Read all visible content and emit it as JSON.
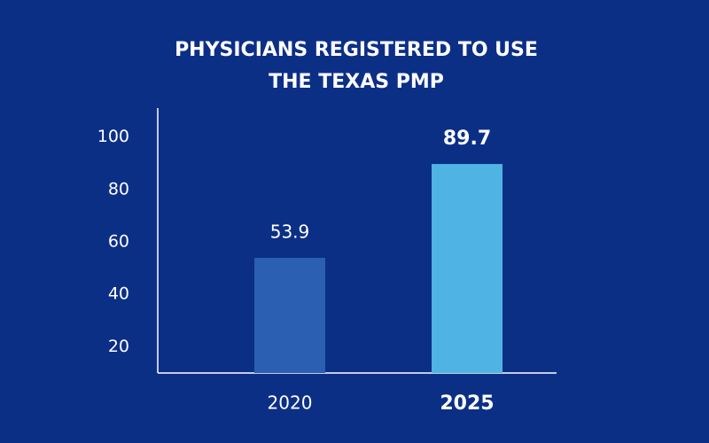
{
  "chart_data": {
    "type": "bar",
    "title": [
      "PHYSICIANS REGISTERED TO USE",
      "THE TEXAS PMP"
    ],
    "categories": [
      "2020",
      "2025"
    ],
    "values": [
      53.9,
      89.7
    ],
    "colors": [
      "#2a5fb2",
      "#4fb4e4"
    ],
    "ylim": [
      10,
      110
    ],
    "yticks": [
      20,
      40,
      60,
      80,
      100
    ],
    "grid": false
  }
}
